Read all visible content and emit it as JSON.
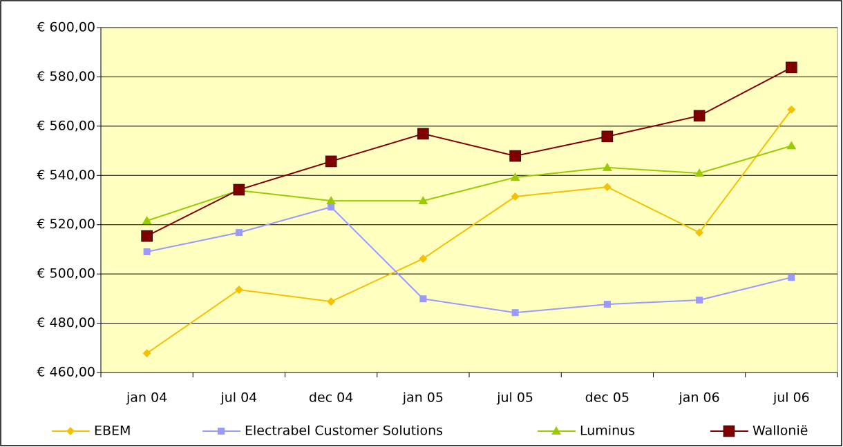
{
  "chart_data": {
    "type": "line",
    "categories": [
      "jan 04",
      "jul 04",
      "dec 04",
      "jan 05",
      "jul 05",
      "dec 05",
      "jan 06",
      "jul 06"
    ],
    "series": [
      {
        "name": "EBEM",
        "color": "#f5c000",
        "marker": "diamond",
        "values": [
          467.8,
          493.6,
          488.8,
          506.2,
          531.4,
          535.3,
          516.8,
          566.7
        ]
      },
      {
        "name": "Electrabel Customer Solutions",
        "color": "#9999ff",
        "marker": "square",
        "values": [
          509.0,
          516.8,
          527.2,
          489.9,
          484.3,
          487.7,
          489.4,
          498.6
        ]
      },
      {
        "name": "Luminus",
        "color": "#99cc00",
        "marker": "triangle",
        "values": [
          521.6,
          533.9,
          529.7,
          529.7,
          539.2,
          543.2,
          540.9,
          552.0
        ]
      },
      {
        "name": "Wallonië",
        "color": "#800000",
        "marker": "big-square",
        "values": [
          515.4,
          534.2,
          545.7,
          556.9,
          547.9,
          555.8,
          564.2,
          583.8
        ]
      }
    ],
    "ylim": [
      460,
      600
    ],
    "yticks": [
      {
        "value": 460,
        "label": "€ 460,00"
      },
      {
        "value": 480,
        "label": "€ 480,00"
      },
      {
        "value": 500,
        "label": "€ 500,00"
      },
      {
        "value": 520,
        "label": "€ 520,00"
      },
      {
        "value": 540,
        "label": "€ 540,00"
      },
      {
        "value": 560,
        "label": "€ 560,00"
      },
      {
        "value": 580,
        "label": "€ 580,00"
      },
      {
        "value": 600,
        "label": "€ 600,00"
      }
    ],
    "grid": true,
    "plot_background": "#ffffc0",
    "legend": "bottom"
  }
}
